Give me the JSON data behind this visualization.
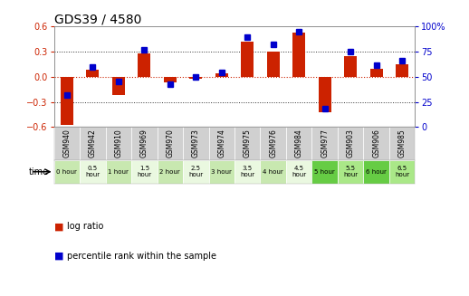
{
  "title": "GDS39 / 4580",
  "samples": [
    "GSM940",
    "GSM942",
    "GSM910",
    "GSM969",
    "GSM970",
    "GSM973",
    "GSM974",
    "GSM975",
    "GSM976",
    "GSM984",
    "GSM977",
    "GSM903",
    "GSM906",
    "GSM985"
  ],
  "time_labels": [
    "0 hour",
    "0.5\nhour",
    "1 hour",
    "1.5\nhour",
    "2 hour",
    "2.5\nhour",
    "3 hour",
    "3.5\nhour",
    "4 hour",
    "4.5\nhour",
    "5 hour",
    "5.5\nhour",
    "6 hour",
    "6.5\nhour"
  ],
  "log_ratio": [
    -0.58,
    0.08,
    -0.22,
    0.28,
    -0.07,
    -0.02,
    0.04,
    0.42,
    0.3,
    0.53,
    -0.42,
    0.25,
    0.1,
    0.15
  ],
  "percentile": [
    32,
    60,
    45,
    77,
    43,
    50,
    54,
    90,
    82,
    95,
    18,
    75,
    62,
    66
  ],
  "ylim_left": [
    -0.6,
    0.6
  ],
  "ylim_right": [
    0,
    100
  ],
  "bar_color": "#cc2200",
  "dot_color": "#0000cc",
  "zero_line_color": "#cc2200",
  "grid_line_color": "#333333",
  "bg_color": "#ffffff",
  "gsm_bg": "#d0d0d0",
  "gsm_edge": "#ffffff",
  "time_bg": [
    "#c8e8b0",
    "#eaf8e0",
    "#c8e8b0",
    "#eaf8e0",
    "#c8e8b0",
    "#eaf8e0",
    "#c8e8b0",
    "#eaf8e0",
    "#c8e8b0",
    "#eaf8e0",
    "#66cc44",
    "#aae888",
    "#66cc44",
    "#aae888"
  ],
  "time_edge": "#ffffff",
  "title_fontsize": 10,
  "tick_fontsize": 7,
  "bar_width": 0.5
}
